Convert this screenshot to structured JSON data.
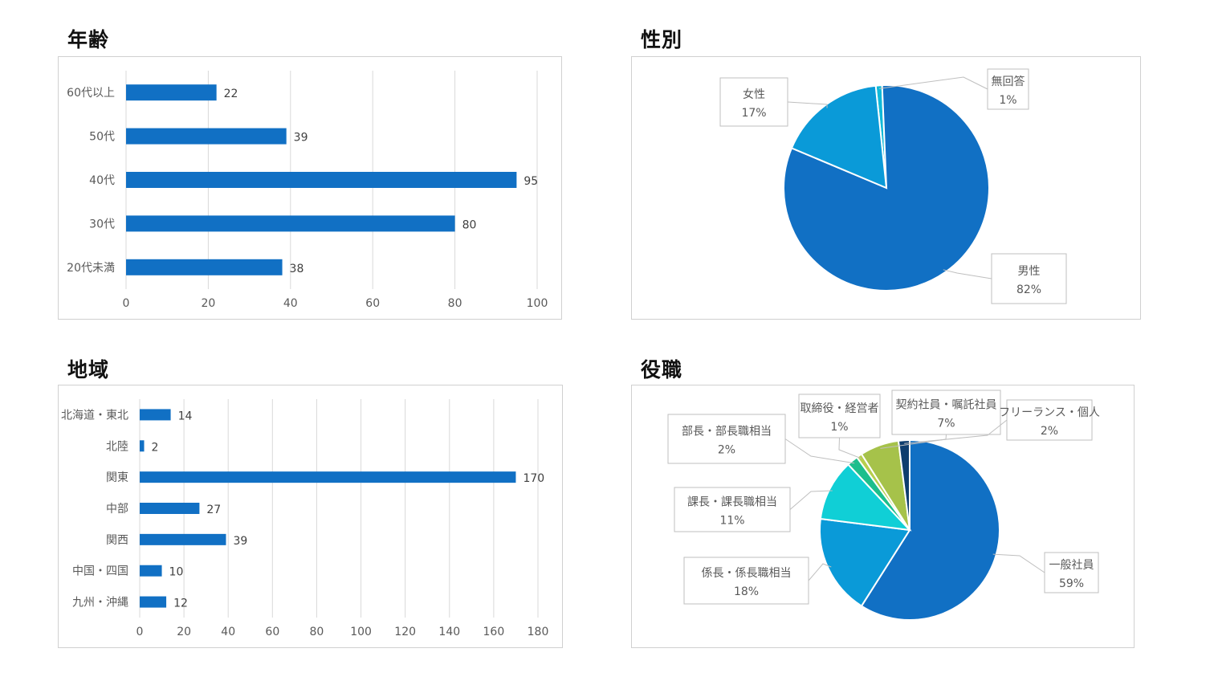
{
  "titles": {
    "age": "年齢",
    "gender": "性別",
    "region": "地域",
    "position": "役職"
  },
  "chart_data": [
    {
      "id": "age",
      "type": "bar",
      "orientation": "horizontal",
      "title": "年齢",
      "categories": [
        "60代以上",
        "50代",
        "40代",
        "30代",
        "20代未満"
      ],
      "values": [
        22,
        39,
        95,
        80,
        38
      ],
      "xlim": [
        0,
        100
      ],
      "xticks": [
        0,
        20,
        40,
        60,
        80,
        100
      ],
      "grid": true,
      "color": "#1170C4"
    },
    {
      "id": "gender",
      "type": "pie",
      "title": "性別",
      "slices": [
        {
          "label": "男性",
          "value": 82,
          "pct": "82%",
          "color": "#1170C4"
        },
        {
          "label": "女性",
          "value": 17,
          "pct": "17%",
          "color": "#0A9AD8"
        },
        {
          "label": "無回答",
          "value": 1,
          "pct": "1%",
          "color": "#10B9D8"
        }
      ]
    },
    {
      "id": "region",
      "type": "bar",
      "orientation": "horizontal",
      "title": "地域",
      "categories": [
        "北海道・東北",
        "北陸",
        "関東",
        "中部",
        "関西",
        "中国・四国",
        "九州・沖縄"
      ],
      "values": [
        14,
        2,
        170,
        27,
        39,
        10,
        12
      ],
      "xlim": [
        0,
        180
      ],
      "xticks": [
        0,
        20,
        40,
        60,
        80,
        100,
        120,
        140,
        160,
        180
      ],
      "grid": true,
      "color": "#1170C4"
    },
    {
      "id": "position",
      "type": "pie",
      "title": "役職",
      "slices": [
        {
          "label": "一般社員",
          "value": 59,
          "pct": "59%",
          "color": "#1170C4"
        },
        {
          "label": "係長・係長職相当",
          "value": 18,
          "pct": "18%",
          "color": "#0A9AD8"
        },
        {
          "label": "課長・課長職相当",
          "value": 11,
          "pct": "11%",
          "color": "#10CFD6"
        },
        {
          "label": "部長・部長職相当",
          "value": 2,
          "pct": "2%",
          "color": "#1DBE8C"
        },
        {
          "label": "取締役・経営者",
          "value": 1,
          "pct": "1%",
          "color": "#B7CE4E"
        },
        {
          "label": "契約社員・嘱託社員",
          "value": 7,
          "pct": "7%",
          "color": "#A6C24A"
        },
        {
          "label": "フリーランス・個人",
          "value": 2,
          "pct": "2%",
          "color": "#0E3D6E"
        }
      ]
    }
  ]
}
